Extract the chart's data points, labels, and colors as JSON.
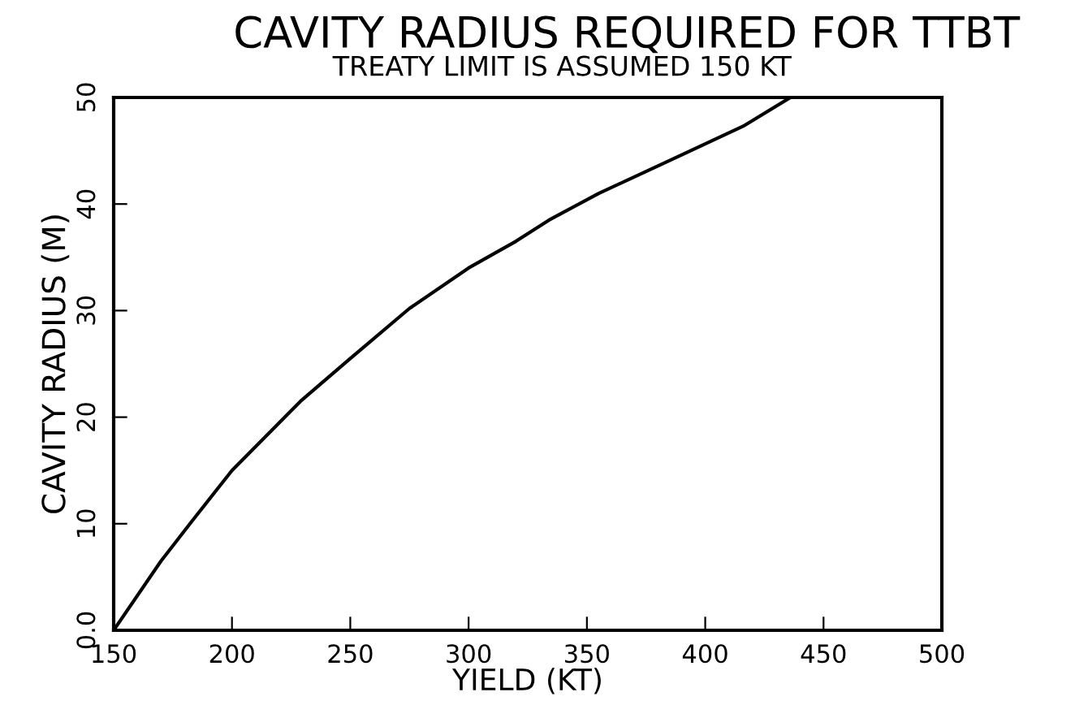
{
  "chart_data": {
    "type": "line",
    "title": "CAVITY RADIUS REQUIRED FOR TTBT",
    "subtitle": "TREATY LIMIT IS ASSUMED 150 KT",
    "xlabel": "YIELD (KT)",
    "ylabel": "CAVITY RADIUS (M)",
    "x": [
      150,
      170,
      184,
      200,
      229,
      250,
      275,
      300,
      320,
      334,
      355,
      389,
      416,
      436
    ],
    "series": [
      {
        "color": "#000000",
        "values": [
          0,
          6.5,
          10.5,
          15.0,
          21.5,
          25.5,
          30.2,
          34.0,
          36.5,
          38.5,
          41.0,
          44.5,
          47.3,
          50
        ]
      }
    ],
    "xlim": [
      150,
      500
    ],
    "ylim": [
      0,
      50
    ],
    "xticks": [
      150,
      200,
      250,
      300,
      350,
      400,
      450,
      500
    ],
    "yticks": [
      {
        "value": 0,
        "label": "0.0"
      },
      10,
      20,
      30,
      40,
      50
    ],
    "grid": false,
    "legend": false,
    "marker": "none",
    "line_style": "solid"
  }
}
